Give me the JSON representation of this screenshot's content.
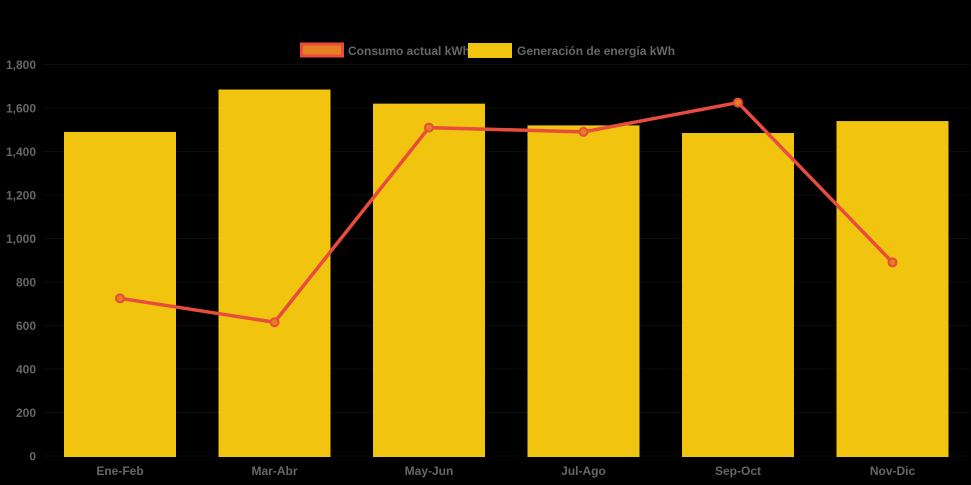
{
  "chart_data": {
    "type": "combo-bar-line",
    "categories": [
      "Ene-Feb",
      "Mar-Abr",
      "May-Jun",
      "Jul-Ago",
      "Sep-Oct",
      "Nov-Dic"
    ],
    "series": [
      {
        "name": "Consumo actual kWh",
        "type": "line",
        "values": [
          725,
          615,
          1510,
          1490,
          1625,
          890
        ],
        "line_color": "#E74C3C",
        "point_fill_color": "#E67E22",
        "point_border_color": "#E74C3C"
      },
      {
        "name": "Generación de energía kWh",
        "type": "bar",
        "values": [
          1490,
          1685,
          1620,
          1520,
          1485,
          1540
        ],
        "color": "#F1C40F"
      }
    ],
    "title": "",
    "xlabel": "",
    "ylabel": "",
    "ylim": [
      0,
      1800
    ],
    "ytick_step": 200,
    "ytick_labels": [
      "0",
      "200",
      "400",
      "600",
      "800",
      "1,000",
      "1,200",
      "1,400",
      "1,600",
      "1,800"
    ],
    "grid": false,
    "legend_position": "top-center",
    "background_color": "#000000",
    "label_color": "#666666"
  }
}
